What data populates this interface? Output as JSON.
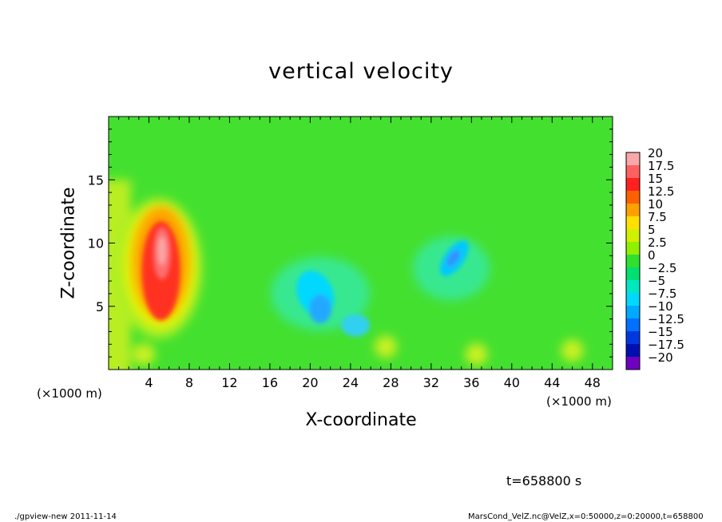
{
  "chart_data": {
    "type": "heatmap",
    "title": "vertical velocity",
    "xlabel": "X-coordinate",
    "ylabel": "Z-coordinate",
    "x_unit": "(×1000 m)",
    "y_unit": "(×1000 m)",
    "xlim": [
      0,
      50
    ],
    "ylim": [
      0,
      20
    ],
    "x_ticks": [
      "4",
      "8",
      "12",
      "16",
      "20",
      "24",
      "28",
      "32",
      "36",
      "40",
      "44",
      "48"
    ],
    "y_ticks": [
      "5",
      "10",
      "15"
    ],
    "colorbar": {
      "labels": [
        "20",
        "17.5",
        "15",
        "12.5",
        "10",
        "7.5",
        "5",
        "2.5",
        "0",
        "−2.5",
        "−5",
        "−7.5",
        "−10",
        "−12.5",
        "−15",
        "−17.5",
        "−20"
      ],
      "colors": [
        "#f8a8a8",
        "#ff6060",
        "#ff2020",
        "#ff6000",
        "#ffa000",
        "#ffe000",
        "#d0f000",
        "#90f000",
        "#30e030",
        "#00e070",
        "#00e8c0",
        "#00d8ff",
        "#00a8ff",
        "#0070ff",
        "#0038e0",
        "#0010b0",
        "#7000c0"
      ]
    },
    "features": [
      {
        "x": 5.2,
        "z": 8.5,
        "value": 19,
        "desc": "updraft core"
      },
      {
        "x": 20.5,
        "z": 5.5,
        "value": -8
      },
      {
        "x": 34.5,
        "z": 8.5,
        "value": -7
      }
    ],
    "time_label": "t=658800 s"
  },
  "footer": {
    "left": "./gpview-new   2011-11-14",
    "right": "MarsCond_VelZ.nc@VelZ,x=0:50000,z=0:20000,t=658800"
  }
}
